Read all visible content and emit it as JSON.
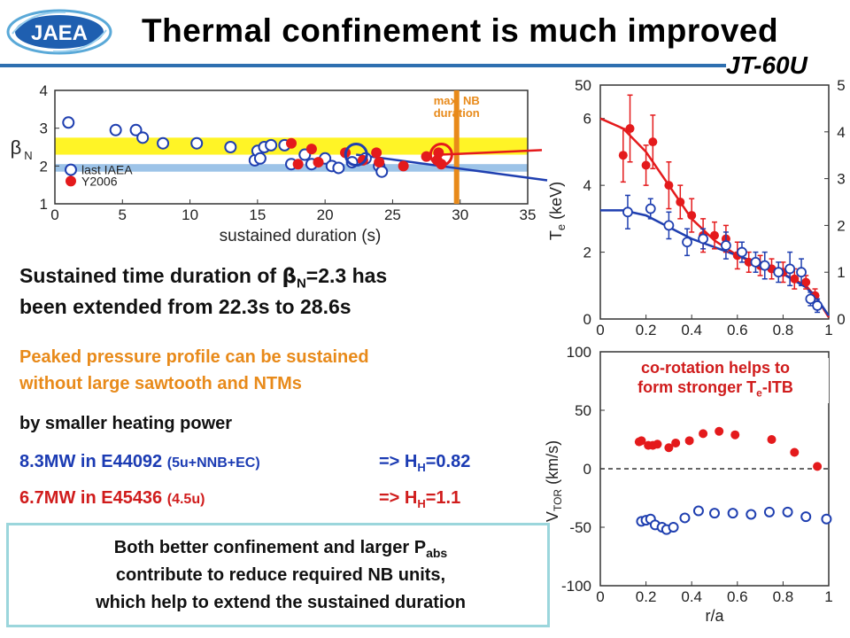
{
  "header": {
    "title": "Thermal confinement is much improved",
    "logo_text": "JAEA",
    "device": "JT-60U",
    "bar_color": "#2e6fb0"
  },
  "colors": {
    "red": "#e41a1c",
    "blue": "#1f3fb0",
    "orange": "#e88a1a",
    "yellow_band": "#fff200",
    "blue_band": "#9cc3e8",
    "box_border": "#9bd6dc"
  },
  "text": {
    "sustained_line1_pre": "Sustained time duration of ",
    "beta_symbol": "β",
    "beta_sub": "N",
    "sustained_line1_post": "=2.3 has",
    "sustained_line2": "been extended from 22.3s to 28.6s",
    "peaked_line1": "Peaked pressure profile can be sustained",
    "peaked_line2": "without large sawtooth and NTMs",
    "heating_line": "by smaller heating power",
    "case1_main": "8.3MW in E44092 ",
    "case1_small": "(5u+NNB+EC)",
    "case1_hh_pre": "=> H",
    "case1_hh_sub": "H",
    "case1_hh_val": "=0.82",
    "case2_main": "6.7MW in E45436 ",
    "case2_small": "(4.5u)",
    "case2_hh_pre": "=> H",
    "case2_hh_sub": "H",
    "case2_hh_val": "=1.1",
    "summary_line1_pre": "Both better confinement and larger P",
    "summary_line1_sub": "abs",
    "summary_line2": "contribute to reduce required NB units,",
    "summary_line3": "which help to extend the sustained duration",
    "corot_line1": "co-rotation  helps to",
    "corot_line2_pre": "form stronger T",
    "corot_line2_sub": "e",
    "corot_line2_post": "-ITB"
  },
  "chart_data": [
    {
      "type": "scatter",
      "id": "betaN-vs-duration",
      "xlabel": "sustained duration (s)",
      "ylabel_symbol": "β",
      "ylabel_sub": "N",
      "xlim": [
        0,
        35
      ],
      "ylim": [
        1,
        4
      ],
      "xticks": [
        0,
        5,
        10,
        15,
        20,
        25,
        30,
        35
      ],
      "yticks": [
        1,
        2,
        3,
        4
      ],
      "bands": [
        {
          "name": "yellow",
          "y": [
            2.3,
            2.75
          ],
          "color": "#fff200"
        },
        {
          "name": "blue",
          "y": [
            1.85,
            2.05
          ],
          "color": "#9cc3e8"
        }
      ],
      "annotation": [
        "max. NB",
        "duration"
      ],
      "annotation_x": 30,
      "series": [
        {
          "name": "last IAEA",
          "marker": "open",
          "color": "#1f3fb0",
          "x": [
            1,
            4.5,
            6,
            6.5,
            8,
            10.5,
            13,
            14.8,
            15,
            15.2,
            15.5,
            16,
            17,
            17.5,
            18.5,
            19,
            20,
            20.5,
            21,
            22,
            23,
            24,
            24.2
          ],
          "y": [
            3.15,
            2.95,
            2.95,
            2.75,
            2.6,
            2.6,
            2.5,
            2.15,
            2.4,
            2.2,
            2.5,
            2.55,
            2.55,
            2.05,
            2.3,
            2.05,
            2.2,
            2.0,
            1.95,
            2.1,
            2.2,
            2.0,
            1.85
          ]
        },
        {
          "name": "Y2006",
          "marker": "filled",
          "color": "#e41a1c",
          "x": [
            17.5,
            18,
            19,
            19.5,
            21.5,
            22.8,
            23.8,
            24,
            25.8,
            27.5,
            28.3,
            28.4,
            28.6
          ],
          "y": [
            2.6,
            2.05,
            2.45,
            2.1,
            2.35,
            2.15,
            2.35,
            2.1,
            2.0,
            2.25,
            2.15,
            2.35,
            2.05
          ]
        }
      ],
      "highlight_circles": [
        {
          "x": 22.3,
          "y": 2.3,
          "color": "#1f3fb0"
        },
        {
          "x": 28.6,
          "y": 2.3,
          "color": "#e41a1c"
        }
      ]
    },
    {
      "type": "scatter",
      "id": "Te-profile",
      "xlabel": "",
      "ylabel": "T",
      "ylabel_sub": "e",
      "ylabel_unit": " (keV)",
      "xlim": [
        0,
        1
      ],
      "ylim": [
        0,
        7
      ],
      "xticks": [
        0,
        0.2,
        0.4,
        0.6,
        0.8,
        1
      ],
      "yticks": [
        0,
        2,
        4,
        6
      ],
      "left_axis_top_label": "50",
      "right_yticks": [
        0,
        1,
        2,
        3,
        4,
        5
      ],
      "series": [
        {
          "name": "E45436",
          "marker": "filled",
          "color": "#e41a1c",
          "x": [
            0.1,
            0.13,
            0.2,
            0.23,
            0.3,
            0.35,
            0.4,
            0.45,
            0.5,
            0.55,
            0.6,
            0.65,
            0.7,
            0.75,
            0.8,
            0.85,
            0.9,
            0.94
          ],
          "y": [
            4.9,
            5.7,
            4.6,
            5.3,
            4.0,
            3.5,
            3.1,
            2.5,
            2.5,
            2.4,
            1.9,
            1.7,
            1.6,
            1.5,
            1.4,
            1.2,
            1.1,
            0.7
          ],
          "err": [
            0.8,
            1.0,
            0.6,
            0.8,
            0.7,
            0.5,
            0.5,
            0.5,
            0.4,
            0.4,
            0.4,
            0.3,
            0.3,
            0.3,
            0.3,
            0.3,
            0.2,
            0.2
          ]
        },
        {
          "name": "E44092",
          "marker": "open",
          "color": "#1f3fb0",
          "x": [
            0.12,
            0.22,
            0.3,
            0.38,
            0.45,
            0.55,
            0.62,
            0.68,
            0.72,
            0.78,
            0.83,
            0.88,
            0.92,
            0.95
          ],
          "y": [
            3.2,
            3.3,
            2.8,
            2.3,
            2.4,
            2.2,
            2.0,
            1.7,
            1.6,
            1.4,
            1.5,
            1.4,
            0.6,
            0.4
          ],
          "err": [
            0.5,
            0.3,
            0.4,
            0.4,
            0.3,
            0.4,
            0.3,
            0.3,
            0.4,
            0.3,
            0.5,
            0.4,
            0.2,
            0.2
          ]
        }
      ],
      "fits": [
        {
          "color": "#e41a1c",
          "x": [
            0,
            0.1,
            0.2,
            0.3,
            0.4,
            0.5,
            0.6,
            0.7,
            0.8,
            0.9,
            0.95,
            1
          ],
          "y": [
            6.0,
            5.7,
            5.0,
            4.0,
            3.0,
            2.35,
            1.9,
            1.6,
            1.35,
            1.0,
            0.6,
            0.05
          ]
        },
        {
          "color": "#1f3fb0",
          "x": [
            0,
            0.1,
            0.2,
            0.3,
            0.4,
            0.5,
            0.6,
            0.7,
            0.8,
            0.9,
            0.95,
            1
          ],
          "y": [
            3.25,
            3.25,
            3.1,
            2.75,
            2.4,
            2.15,
            1.9,
            1.65,
            1.35,
            0.95,
            0.6,
            0.1
          ]
        }
      ]
    },
    {
      "type": "scatter",
      "id": "Vtor-profile",
      "xlabel": "r/a",
      "ylabel": "V",
      "ylabel_sub": "TOR",
      "ylabel_unit": " (km/s)",
      "xlim": [
        0,
        1
      ],
      "ylim": [
        -100,
        100
      ],
      "xticks": [
        0,
        0.2,
        0.4,
        0.6,
        0.8,
        1
      ],
      "yticks": [
        -100,
        -50,
        0,
        50,
        100
      ],
      "series": [
        {
          "name": "E45436",
          "marker": "filled",
          "color": "#e41a1c",
          "x": [
            0.17,
            0.18,
            0.21,
            0.23,
            0.25,
            0.3,
            0.33,
            0.39,
            0.45,
            0.52,
            0.59,
            0.75,
            0.85,
            0.95
          ],
          "y": [
            23,
            24,
            20,
            20,
            21,
            18,
            22,
            24,
            30,
            32,
            29,
            25,
            14,
            2
          ]
        },
        {
          "name": "E44092",
          "marker": "open",
          "color": "#1f3fb0",
          "x": [
            0.18,
            0.2,
            0.22,
            0.24,
            0.27,
            0.29,
            0.32,
            0.37,
            0.43,
            0.5,
            0.58,
            0.66,
            0.74,
            0.82,
            0.9,
            0.99
          ],
          "y": [
            -45,
            -44,
            -43,
            -48,
            -50,
            -52,
            -50,
            -42,
            -36,
            -38,
            -38,
            -39,
            -37,
            -37,
            -41,
            -43
          ]
        }
      ],
      "zero_line": true
    }
  ]
}
